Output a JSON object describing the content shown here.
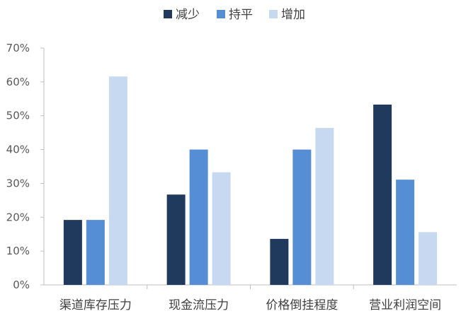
{
  "chart_data": {
    "type": "bar",
    "categories": [
      "渠道库存压力",
      "现金流压力",
      "价格倒挂程度",
      "营业利润空间"
    ],
    "series": [
      {
        "name": "减少",
        "color": "#203A5E",
        "values": [
          19.2,
          26.7,
          13.6,
          53.3
        ]
      },
      {
        "name": "持平",
        "color": "#558ED5",
        "values": [
          19.2,
          40.0,
          40.0,
          31.1
        ]
      },
      {
        "name": "增加",
        "color": "#C6D9F0",
        "values": [
          61.6,
          33.3,
          46.4,
          15.6
        ]
      }
    ],
    "ylim": [
      0,
      70
    ],
    "yticks": [
      "0%",
      "10%",
      "20%",
      "30%",
      "40%",
      "50%",
      "60%",
      "70%"
    ],
    "legend_position": "top-center",
    "grid": false
  }
}
